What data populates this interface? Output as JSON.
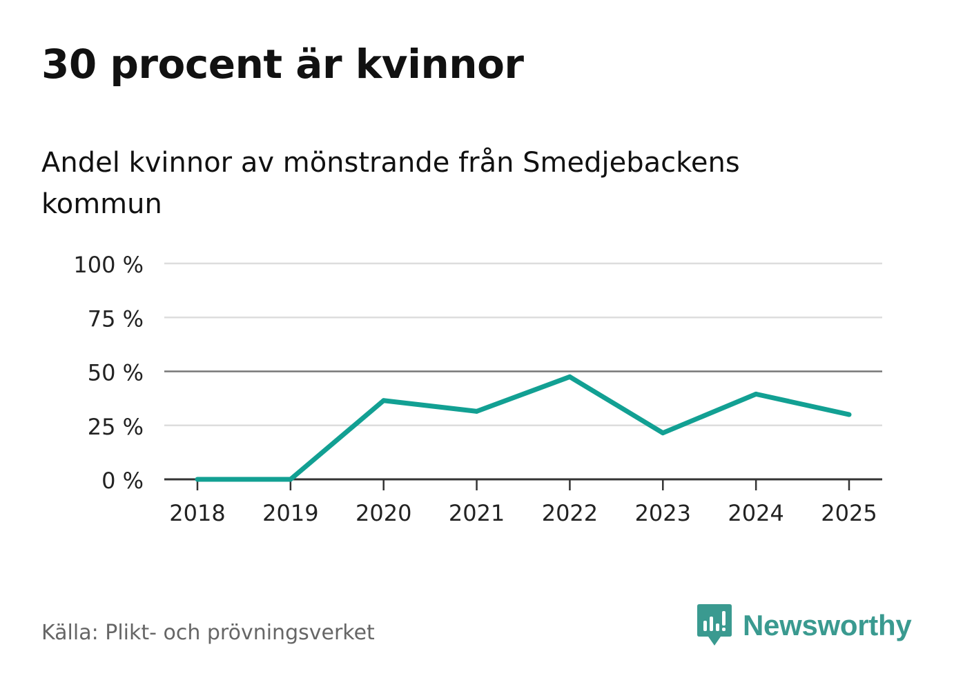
{
  "chart_data": {
    "type": "line",
    "title": "30 procent är kvinnor",
    "subtitle": "Andel kvinnor av mönstrande från Smedjebackens kommun",
    "x": [
      "2018",
      "2019",
      "2020",
      "2021",
      "2022",
      "2023",
      "2024",
      "2025"
    ],
    "series": [
      {
        "name": "Andel kvinnor",
        "values": [
          0,
          0,
          36.5,
          31.5,
          47.5,
          21.5,
          39.5,
          30
        ],
        "color": "#12a093"
      }
    ],
    "ylim": [
      0,
      100
    ],
    "yticks": [
      0,
      25,
      50,
      75,
      100
    ],
    "ytick_labels": [
      "0 %",
      "25 %",
      "50 %",
      "75 %",
      "100 %"
    ],
    "reference_line": 50,
    "xlabel": "",
    "ylabel": "",
    "grid": true
  },
  "footer": {
    "source": "Källa: Plikt- och prövningsverket",
    "brand": "Newsworthy"
  },
  "colors": {
    "line": "#12a093",
    "grid": "#dddddd",
    "reference": "#777777",
    "axis": "#333333",
    "brand": "#3a9a90",
    "source_text": "#666666"
  }
}
